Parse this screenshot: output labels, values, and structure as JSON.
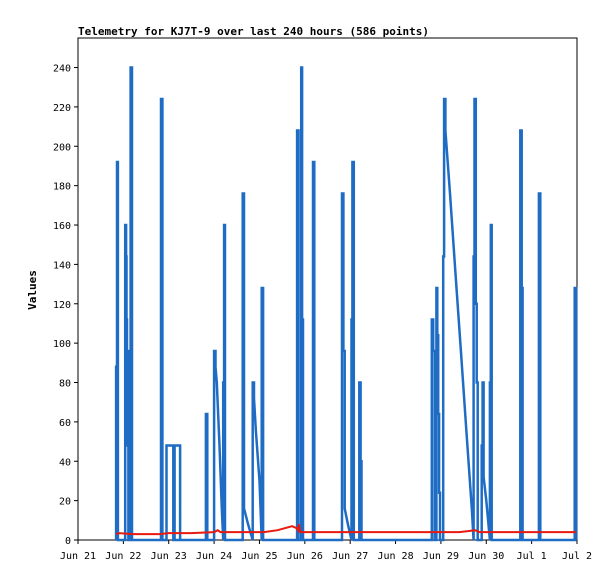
{
  "chart_data": {
    "type": "line",
    "title": "Telemetry for KJ7T-9 over last 240 hours (586 points)",
    "xlabel": "",
    "ylabel": "Values",
    "xlim": [
      0,
      11
    ],
    "ylim": [
      0,
      255
    ],
    "x_tick_labels": [
      "Jun 21",
      "Jun 22",
      "Jun 23",
      "Jun 24",
      "Jun 25",
      "Jun 26",
      "Jun 27",
      "Jun 28",
      "Jun 29",
      "Jun 30",
      "Jul 1",
      "Jul 2"
    ],
    "y_ticks": [
      0,
      20,
      40,
      60,
      80,
      100,
      120,
      140,
      160,
      180,
      200,
      220,
      240
    ],
    "grid": false,
    "legend": "none",
    "x_units": "days since Jun 21 00:00",
    "series": [
      {
        "name": "",
        "color": "#1f6cc4",
        "points": [
          [
            0.84,
            0
          ],
          [
            0.84,
            88
          ],
          [
            0.86,
            88
          ],
          [
            0.86,
            192
          ],
          [
            0.88,
            192
          ],
          [
            0.88,
            0
          ],
          [
            1.04,
            0
          ],
          [
            1.04,
            160
          ],
          [
            1.06,
            160
          ],
          [
            1.06,
            144
          ],
          [
            1.07,
            144
          ],
          [
            1.07,
            112
          ],
          [
            1.08,
            112
          ],
          [
            1.08,
            80
          ],
          [
            1.09,
            80
          ],
          [
            1.09,
            48
          ],
          [
            1.1,
            48
          ],
          [
            1.1,
            96
          ],
          [
            1.11,
            96
          ],
          [
            1.11,
            0
          ],
          [
            1.16,
            0
          ],
          [
            1.16,
            240
          ],
          [
            1.19,
            240
          ],
          [
            1.19,
            0
          ],
          [
            1.83,
            0
          ],
          [
            1.83,
            224
          ],
          [
            1.86,
            224
          ],
          [
            1.86,
            0
          ],
          [
            1.95,
            0
          ],
          [
            1.95,
            48
          ],
          [
            2.25,
            48
          ],
          [
            2.25,
            0
          ],
          [
            2.1,
            0
          ],
          [
            2.1,
            48
          ],
          [
            2.13,
            48
          ],
          [
            2.13,
            0
          ],
          [
            2.82,
            0
          ],
          [
            2.82,
            64
          ],
          [
            2.85,
            64
          ],
          [
            2.85,
            0
          ],
          [
            3.0,
            0
          ],
          [
            3.0,
            96
          ],
          [
            3.03,
            96
          ],
          [
            3.03,
            88
          ],
          [
            3.06,
            80
          ],
          [
            3.12,
            48
          ],
          [
            3.17,
            16
          ],
          [
            3.2,
            0
          ],
          [
            3.2,
            80
          ],
          [
            3.22,
            80
          ],
          [
            3.22,
            160
          ],
          [
            3.24,
            160
          ],
          [
            3.24,
            0
          ],
          [
            3.63,
            0
          ],
          [
            3.63,
            176
          ],
          [
            3.66,
            176
          ],
          [
            3.66,
            16
          ],
          [
            3.75,
            8
          ],
          [
            3.85,
            0
          ],
          [
            3.85,
            80
          ],
          [
            3.88,
            80
          ],
          [
            3.88,
            72
          ],
          [
            3.92,
            56
          ],
          [
            4.0,
            30
          ],
          [
            4.05,
            0
          ],
          [
            4.05,
            128
          ],
          [
            4.08,
            128
          ],
          [
            4.08,
            0
          ],
          [
            4.83,
            0
          ],
          [
            4.83,
            208
          ],
          [
            4.86,
            208
          ],
          [
            4.86,
            0
          ],
          [
            4.92,
            0
          ],
          [
            4.92,
            240
          ],
          [
            4.94,
            240
          ],
          [
            4.94,
            112
          ],
          [
            4.96,
            112
          ],
          [
            4.96,
            0
          ],
          [
            5.18,
            0
          ],
          [
            5.18,
            192
          ],
          [
            5.21,
            192
          ],
          [
            5.21,
            0
          ],
          [
            5.82,
            0
          ],
          [
            5.82,
            176
          ],
          [
            5.85,
            176
          ],
          [
            5.85,
            96
          ],
          [
            5.88,
            96
          ],
          [
            5.88,
            16
          ],
          [
            5.95,
            8
          ],
          [
            6.03,
            0
          ],
          [
            6.03,
            112
          ],
          [
            6.05,
            112
          ],
          [
            6.05,
            192
          ],
          [
            6.08,
            192
          ],
          [
            6.08,
            0
          ],
          [
            6.2,
            0
          ],
          [
            6.2,
            80
          ],
          [
            6.23,
            80
          ],
          [
            6.23,
            40
          ],
          [
            6.25,
            40
          ],
          [
            6.25,
            0
          ],
          [
            7.8,
            0
          ],
          [
            7.8,
            112
          ],
          [
            7.83,
            112
          ],
          [
            7.83,
            96
          ],
          [
            7.86,
            96
          ],
          [
            7.86,
            0
          ],
          [
            7.9,
            0
          ],
          [
            7.9,
            128
          ],
          [
            7.92,
            128
          ],
          [
            7.92,
            104
          ],
          [
            7.94,
            104
          ],
          [
            7.94,
            64
          ],
          [
            7.96,
            64
          ],
          [
            7.96,
            24
          ],
          [
            7.98,
            24
          ],
          [
            7.98,
            0
          ],
          [
            8.05,
            0
          ],
          [
            8.05,
            144
          ],
          [
            8.07,
            144
          ],
          [
            8.07,
            224
          ],
          [
            8.1,
            224
          ],
          [
            8.1,
            208
          ],
          [
            8.2,
            176
          ],
          [
            8.32,
            136
          ],
          [
            8.44,
            96
          ],
          [
            8.56,
            56
          ],
          [
            8.68,
            16
          ],
          [
            8.72,
            0
          ],
          [
            8.72,
            144
          ],
          [
            8.74,
            144
          ],
          [
            8.74,
            224
          ],
          [
            8.77,
            224
          ],
          [
            8.77,
            120
          ],
          [
            8.79,
            120
          ],
          [
            8.79,
            80
          ],
          [
            8.81,
            80
          ],
          [
            8.81,
            0
          ],
          [
            8.9,
            0
          ],
          [
            8.9,
            48
          ],
          [
            8.92,
            48
          ],
          [
            8.92,
            80
          ],
          [
            8.94,
            80
          ],
          [
            8.94,
            32
          ],
          [
            9.0,
            20
          ],
          [
            9.08,
            0
          ],
          [
            9.08,
            80
          ],
          [
            9.1,
            80
          ],
          [
            9.1,
            160
          ],
          [
            9.12,
            160
          ],
          [
            9.12,
            0
          ],
          [
            9.75,
            0
          ],
          [
            9.75,
            208
          ],
          [
            9.78,
            208
          ],
          [
            9.78,
            128
          ],
          [
            9.8,
            128
          ],
          [
            9.8,
            0
          ],
          [
            10.16,
            0
          ],
          [
            10.16,
            176
          ],
          [
            10.19,
            176
          ],
          [
            10.19,
            0
          ],
          [
            10.95,
            0
          ],
          [
            10.95,
            128
          ],
          [
            10.98,
            128
          ],
          [
            10.98,
            0
          ]
        ]
      },
      {
        "name": "",
        "color": "#e8190f",
        "points": [
          [
            0.84,
            3
          ],
          [
            0.9,
            3.5
          ],
          [
            1.2,
            3
          ],
          [
            1.8,
            3
          ],
          [
            2.0,
            3.5
          ],
          [
            2.5,
            3.5
          ],
          [
            3.0,
            4
          ],
          [
            3.08,
            5
          ],
          [
            3.14,
            4
          ],
          [
            3.7,
            4
          ],
          [
            4.1,
            4
          ],
          [
            4.4,
            5
          ],
          [
            4.72,
            7
          ],
          [
            4.82,
            6
          ],
          [
            4.85,
            5
          ],
          [
            4.87,
            8
          ],
          [
            4.9,
            4
          ],
          [
            5.3,
            4
          ],
          [
            6.0,
            4
          ],
          [
            6.5,
            4
          ],
          [
            7.0,
            4
          ],
          [
            7.5,
            4
          ],
          [
            8.0,
            4
          ],
          [
            8.4,
            4
          ],
          [
            8.6,
            4.5
          ],
          [
            8.75,
            5
          ],
          [
            8.85,
            4
          ],
          [
            9.5,
            4
          ],
          [
            10.0,
            4
          ],
          [
            10.5,
            4
          ],
          [
            10.98,
            4
          ]
        ]
      }
    ]
  }
}
